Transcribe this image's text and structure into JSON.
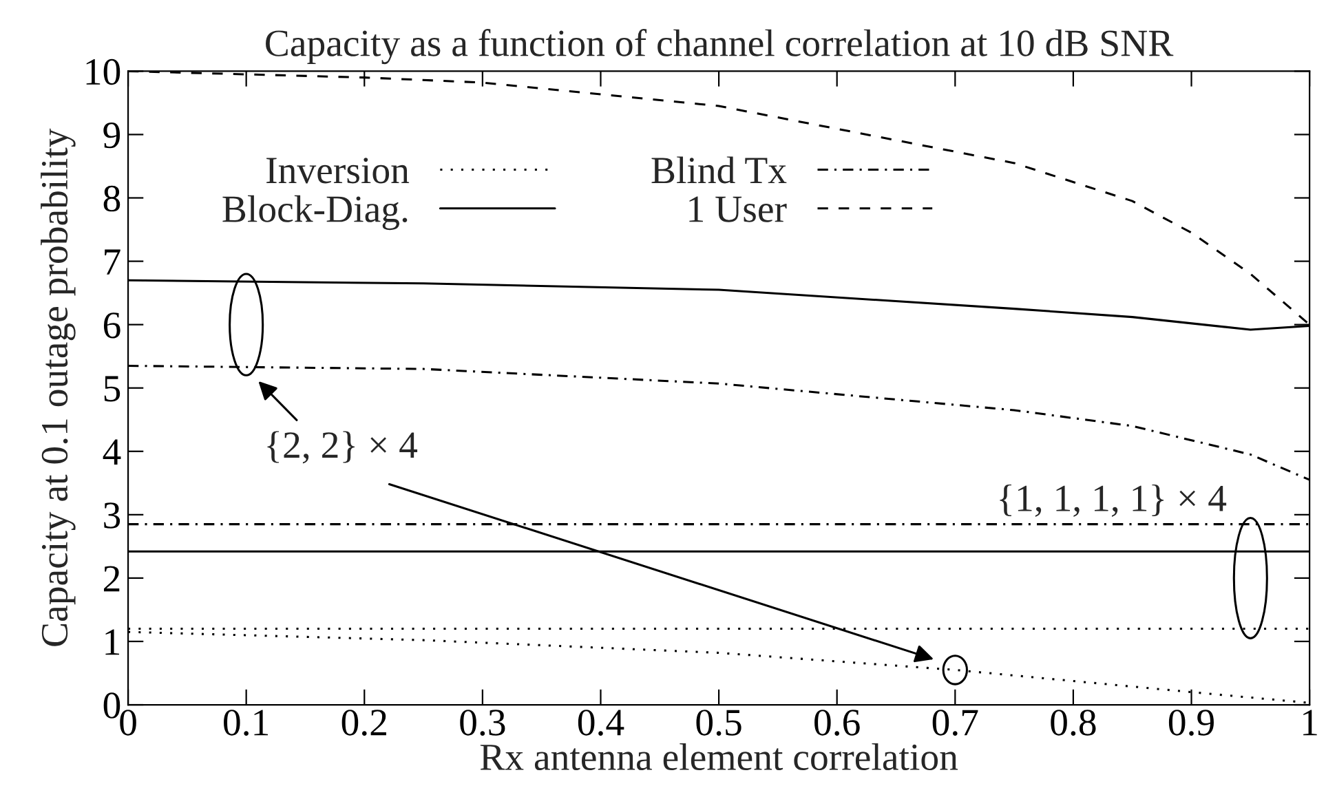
{
  "chart_data": {
    "type": "line",
    "title": "Capacity as a function of channel correlation at 10 dB SNR",
    "xlabel": "Rx antenna element correlation",
    "ylabel": "Capacity at 0.1 outage probability",
    "series": [
      {
        "name": "Inversion",
        "color": "#000000",
        "line_style": "dotted",
        "x": [
          0,
          0.25,
          0.5,
          0.7,
          0.9,
          1
        ],
        "values": [
          1.15,
          1.02,
          0.82,
          0.55,
          0.2,
          0.03
        ]
      },
      {
        "name": "Blind Tx",
        "color": "#000000",
        "line_style": "dashdot",
        "x": [
          0,
          0.25,
          0.5,
          0.75,
          0.85,
          0.95,
          1
        ],
        "values": [
          5.35,
          5.3,
          5.07,
          4.65,
          4.4,
          3.95,
          3.55
        ]
      },
      {
        "name": "Block-Diag.",
        "color": "#000000",
        "line_style": "solid",
        "x": [
          0,
          0.25,
          0.5,
          0.75,
          0.85,
          0.95,
          1
        ],
        "values": [
          6.7,
          6.65,
          6.55,
          6.25,
          6.12,
          5.92,
          5.98
        ]
      },
      {
        "name": "1 User",
        "color": "#000000",
        "line_style": "dashed",
        "x": [
          0,
          0.1,
          0.2,
          0.3,
          0.5,
          0.75,
          0.85,
          0.9,
          0.95,
          1
        ],
        "values": [
          10,
          9.95,
          9.9,
          9.82,
          9.45,
          8.55,
          7.95,
          7.45,
          6.8,
          6.0
        ]
      },
      {
        "color": "#000000",
        "line_style": "dotted",
        "x": [
          0,
          1
        ],
        "values": [
          1.2,
          1.2
        ]
      },
      {
        "color": "#000000",
        "line_style": "dashdot",
        "x": [
          0,
          1
        ],
        "values": [
          2.85,
          2.85
        ]
      },
      {
        "color": "#000000",
        "line_style": "solid",
        "x": [
          0,
          1
        ],
        "values": [
          2.42,
          2.42
        ]
      }
    ],
    "xlim": [
      0,
      1
    ],
    "xticks": [
      0,
      0.1,
      0.2,
      0.3,
      0.4,
      0.5,
      0.6,
      0.7,
      0.8,
      0.9,
      1
    ],
    "ylim": [
      0,
      10
    ],
    "yticks": [
      0,
      1,
      2,
      3,
      4,
      5,
      6,
      7,
      8,
      9,
      10
    ],
    "grid": false,
    "legend": "top left",
    "annotations": [
      "{2, 2} × 4",
      "{1, 1, 1, 1} × 4"
    ]
  }
}
